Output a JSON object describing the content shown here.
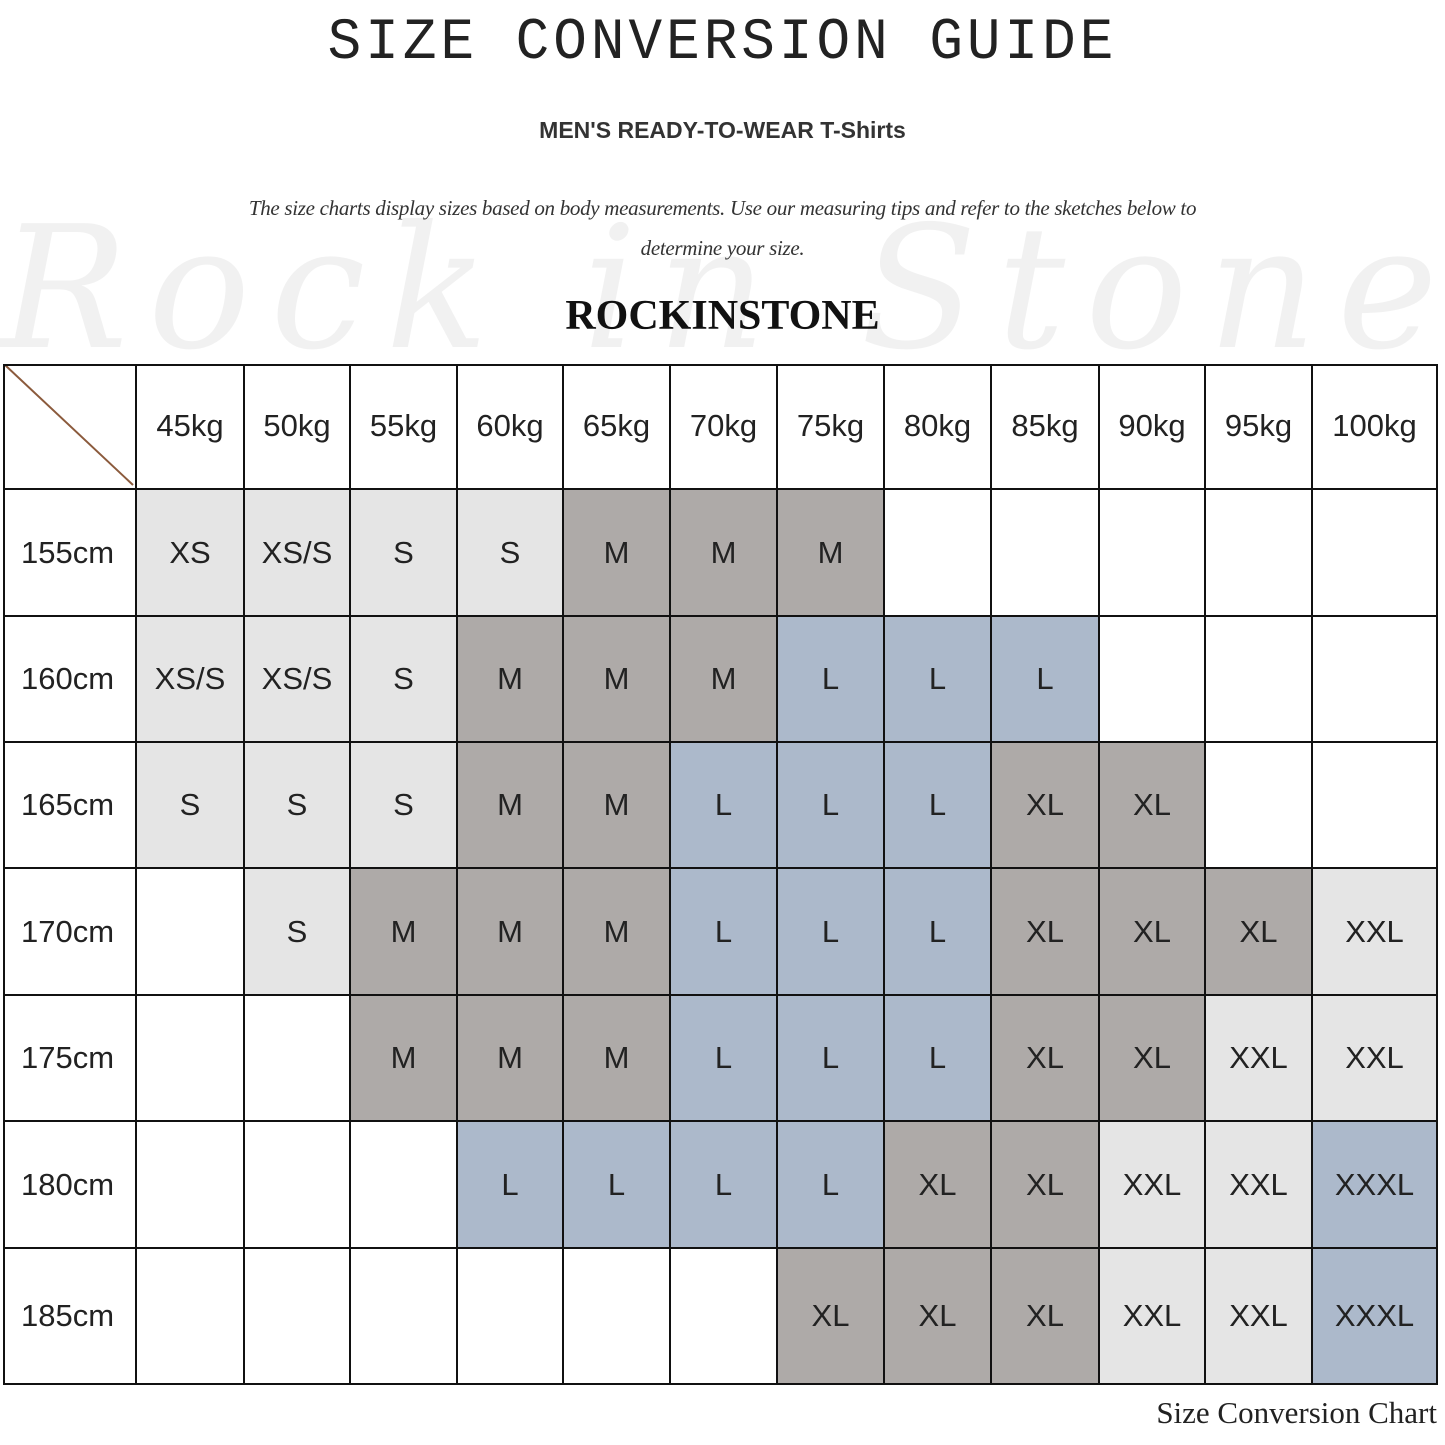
{
  "title": "SIZE CONVERSION GUIDE",
  "subtitle": "MEN'S READY-TO-WEAR T-Shirts",
  "description": "The size charts display sizes based on body measurements. Use our measuring tips and refer to the sketches below to determine your size.",
  "watermark": "Rock in Stone",
  "brand": "ROCKINSTONE",
  "footer": "Size Conversion Chart",
  "colors": {
    "light_gray": "#e5e5e5",
    "dark_gray": "#aeaaa8",
    "blue": "#acb9cb",
    "corner_line": "#8b5a3c"
  },
  "chart_data": {
    "type": "table",
    "columns": [
      "45kg",
      "50kg",
      "55kg",
      "60kg",
      "65kg",
      "70kg",
      "75kg",
      "80kg",
      "85kg",
      "90kg",
      "95kg",
      "100kg"
    ],
    "rows": [
      {
        "label": "155cm",
        "cells": [
          "XS",
          "XS/S",
          "S",
          "S",
          "M",
          "M",
          "M",
          "",
          "",
          "",
          "",
          ""
        ]
      },
      {
        "label": "160cm",
        "cells": [
          "XS/S",
          "XS/S",
          "S",
          "M",
          "M",
          "M",
          "L",
          "L",
          "L",
          "",
          "",
          ""
        ]
      },
      {
        "label": "165cm",
        "cells": [
          "S",
          "S",
          "S",
          "M",
          "M",
          "L",
          "L",
          "L",
          "XL",
          "XL",
          "",
          ""
        ]
      },
      {
        "label": "170cm",
        "cells": [
          "",
          "S",
          "M",
          "M",
          "M",
          "L",
          "L",
          "L",
          "XL",
          "XL",
          "XL",
          "XXL"
        ]
      },
      {
        "label": "175cm",
        "cells": [
          "",
          "",
          "M",
          "M",
          "M",
          "L",
          "L",
          "L",
          "XL",
          "XL",
          "XXL",
          "XXL"
        ]
      },
      {
        "label": "180cm",
        "cells": [
          "",
          "",
          "",
          "L",
          "L",
          "L",
          "L",
          "XL",
          "XL",
          "XXL",
          "XXL",
          "XXXL"
        ]
      },
      {
        "label": "185cm",
        "cells": [
          "",
          "",
          "",
          "",
          "",
          "",
          "XL",
          "XL",
          "XL",
          "XXL",
          "XXL",
          "XXXL"
        ]
      }
    ],
    "size_colors": {
      "XS": "light_gray",
      "XS/S": "light_gray",
      "S": "light_gray",
      "M": "dark_gray",
      "L": "blue",
      "XL": "dark_gray",
      "XXL": "light_gray",
      "XXXL": "blue"
    }
  }
}
